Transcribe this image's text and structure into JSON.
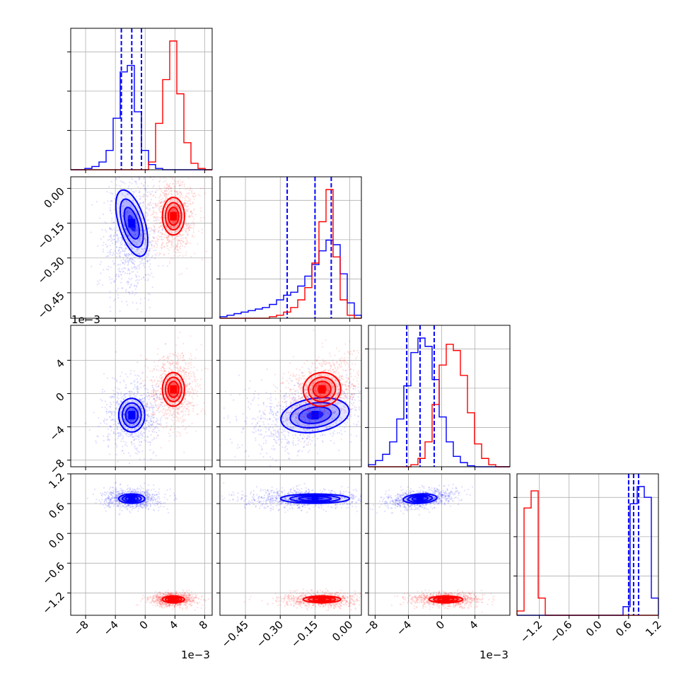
{
  "chart_data": {
    "type": "corner",
    "colors": {
      "a": "#0000ff",
      "b": "#ff0000",
      "grid": "#b0b0b0"
    },
    "grid": true,
    "offset_labels": {
      "x0": "1e−3",
      "x2": "1e−3",
      "y2": "1e−3"
    },
    "params": [
      {
        "lim": [
          -10,
          9
        ],
        "ticks": [
          -8,
          -4,
          0,
          4,
          8
        ],
        "tick_labels": [
          "−8",
          "−4",
          "0",
          "4",
          "8"
        ],
        "unit_scale": "1e-3"
      },
      {
        "lim": [
          -0.56,
          0.05
        ],
        "ticks": [
          -0.45,
          -0.3,
          -0.15,
          0.0
        ],
        "tick_labels": [
          "−0.45",
          "−0.30",
          "−0.15",
          "0.00"
        ]
      },
      {
        "lim": [
          -8.8,
          8.2
        ],
        "ticks": [
          -8,
          -4,
          0,
          4
        ],
        "tick_labels": [
          "−8",
          "−4",
          "0",
          "4"
        ],
        "unit_scale": "1e-3"
      },
      {
        "lim": [
          -1.65,
          1.2
        ],
        "ticks": [
          -1.2,
          -0.6,
          0.0,
          0.6,
          1.2
        ],
        "tick_labels": [
          "−1.2",
          "−0.6",
          "0.0",
          "0.6",
          "1.2"
        ]
      }
    ],
    "series": [
      {
        "key": "a",
        "means": [
          -1.8,
          -0.15,
          -2.6,
          0.7
        ],
        "sds": [
          1.3,
          0.11,
          1.5,
          0.07
        ],
        "quantiles": [
          [
            -3.2,
            -1.8,
            -0.5
          ],
          [
            -0.27,
            -0.15,
            -0.08
          ],
          [
            -4.2,
            -2.6,
            -0.9
          ],
          [
            0.6,
            0.7,
            0.8
          ]
        ],
        "hist": [
          {
            "edges_range": [
              -10,
              9
            ],
            "bins": 20,
            "counts": [
              0,
              0,
              2,
              5,
              12,
              30,
              80,
              152,
              162,
              90,
              30,
              8,
              2,
              0,
              0,
              0,
              0,
              0,
              0,
              0
            ]
          },
          {
            "edges_range": [
              -0.56,
              0.05
            ],
            "bins": 20,
            "counts": [
              2,
              4,
              6,
              8,
              10,
              12,
              14,
              18,
              24,
              30,
              34,
              42,
              55,
              70,
              88,
              102,
              96,
              58,
              20,
              4
            ]
          },
          {
            "edges_range": [
              -8.8,
              8.2
            ],
            "bins": 20,
            "counts": [
              2,
              6,
              12,
              24,
              46,
              78,
              110,
              124,
              116,
              84,
              48,
              24,
              10,
              4,
              1,
              0,
              0,
              0,
              0,
              0
            ]
          },
          {
            "edges_range": [
              -1.65,
              1.2
            ],
            "bins": 20,
            "counts": [
              0,
              0,
              0,
              0,
              0,
              0,
              0,
              0,
              0,
              0,
              0,
              0,
              0,
              0,
              0,
              4,
              52,
              60,
              55,
              8
            ]
          }
        ]
      },
      {
        "key": "b",
        "means": [
          3.8,
          -0.12,
          0.5,
          -1.33
        ],
        "sds": [
          1.1,
          0.06,
          1.5,
          0.05
        ],
        "quantiles": [],
        "hist": [
          {
            "edges_range": [
              -10,
              9
            ],
            "bins": 20,
            "counts": [
              0,
              0,
              0,
              0,
              0,
              0,
              0,
              0,
              0,
              0,
              0,
              12,
              72,
              140,
              200,
              118,
              42,
              10,
              2,
              0
            ]
          },
          {
            "edges_range": [
              -0.56,
              0.05
            ],
            "bins": 20,
            "counts": [
              0,
              0,
              0,
              0,
              0,
              0,
              0,
              2,
              4,
              8,
              14,
              24,
              40,
              72,
              126,
              168,
              80,
              24,
              4,
              0
            ]
          },
          {
            "edges_range": [
              -8.8,
              8.2
            ],
            "bins": 20,
            "counts": [
              0,
              0,
              0,
              0,
              0,
              0,
              2,
              8,
              24,
              60,
              98,
              118,
              112,
              88,
              52,
              22,
              8,
              2,
              0,
              0
            ]
          },
          {
            "edges_range": [
              -1.65,
              1.2
            ],
            "bins": 20,
            "counts": [
              2,
              50,
              58,
              8,
              0,
              0,
              0,
              0,
              0,
              0,
              0,
              0,
              0,
              0,
              0,
              0,
              0,
              0,
              0,
              0
            ]
          }
        ]
      }
    ]
  }
}
